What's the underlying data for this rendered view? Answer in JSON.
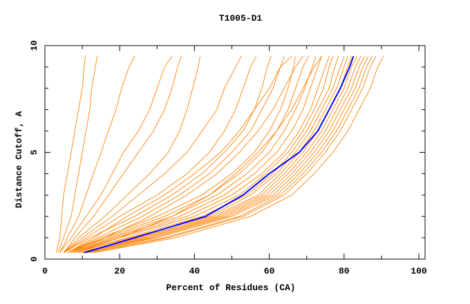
{
  "chart_data": {
    "type": "line",
    "title": "T1005-D1",
    "xlabel": "Percent of Residues (CA)",
    "ylabel": "Distance Cutoff, A",
    "xlim": [
      0,
      100
    ],
    "ylim": [
      0,
      10
    ],
    "xticks": [
      "0",
      "20",
      "40",
      "60",
      "80",
      "100"
    ],
    "yticks": [
      "0",
      "5",
      "10"
    ],
    "grid": false,
    "colors": {
      "models": "#ff8000",
      "highlight": "#0000ff"
    },
    "y_levels": [
      0.3,
      1,
      2,
      3,
      4,
      5,
      6,
      7,
      8,
      9,
      9.5
    ],
    "models_x": [
      [
        3,
        4,
        4.5,
        5,
        6,
        7,
        8,
        9,
        10,
        10.5,
        10.8
      ],
      [
        3.5,
        5,
        7,
        8,
        9,
        10,
        11,
        12,
        12.5,
        13.5,
        14
      ],
      [
        4,
        6,
        9,
        11,
        13,
        15,
        17,
        19,
        20.5,
        22.5,
        24
      ],
      [
        4,
        7,
        11,
        15,
        18,
        21,
        25,
        28,
        30,
        32,
        34
      ],
      [
        5,
        8,
        13,
        17,
        21,
        25,
        29,
        32,
        34,
        35.5,
        36.5
      ],
      [
        5,
        9,
        16,
        22,
        28,
        33,
        36,
        38,
        39.5,
        41,
        41.5
      ],
      [
        5,
        10,
        18,
        25,
        32,
        38,
        42,
        46,
        48,
        51,
        52.5
      ],
      [
        5,
        11,
        20,
        30,
        38,
        44,
        48,
        51,
        53,
        55,
        56.5
      ],
      [
        5,
        12,
        24,
        34,
        42,
        48,
        53,
        56,
        58,
        59.5,
        60.5
      ],
      [
        6,
        14,
        26,
        36,
        44,
        50,
        55,
        58,
        61,
        63,
        64
      ],
      [
        6,
        15,
        30,
        42,
        50,
        56,
        60,
        63,
        65,
        66.5,
        67
      ],
      [
        6,
        16,
        32,
        44,
        52,
        58,
        62,
        65,
        67,
        69,
        70.5
      ],
      [
        6,
        17,
        34,
        46,
        54,
        60,
        64,
        67,
        69.5,
        71.5,
        72.5
      ],
      [
        7,
        18,
        36,
        48,
        56,
        62,
        66,
        69,
        71,
        73,
        74
      ],
      [
        7,
        19,
        38,
        50,
        58,
        64,
        68,
        71,
        73,
        75,
        76
      ],
      [
        7,
        20,
        40,
        52,
        59,
        65,
        69,
        72,
        74.5,
        76,
        77
      ],
      [
        8,
        22,
        42,
        54,
        61,
        66,
        70,
        73,
        76,
        77.5,
        78.5
      ],
      [
        8,
        23,
        44,
        55,
        62,
        67,
        71,
        74,
        77,
        79,
        80
      ],
      [
        9,
        25,
        45,
        57,
        63,
        68,
        72,
        75,
        78,
        80,
        81
      ],
      [
        9,
        26,
        46,
        58,
        64,
        69,
        73,
        76,
        79,
        81,
        82
      ],
      [
        10,
        27,
        47,
        59,
        65,
        70,
        74,
        77,
        80,
        82,
        83.5
      ],
      [
        10,
        28,
        48,
        60,
        66,
        71,
        75,
        78,
        81,
        83,
        84.5
      ],
      [
        11,
        29,
        49,
        61,
        67,
        72,
        76,
        79,
        82,
        84,
        85.5
      ],
      [
        11,
        30,
        50,
        62,
        68,
        73,
        77,
        80,
        83,
        85,
        86.5
      ],
      [
        12,
        32,
        52,
        63,
        69,
        74,
        78,
        81,
        84,
        86,
        87.5
      ],
      [
        12,
        33,
        53,
        64,
        70,
        75,
        79,
        82,
        85,
        87,
        88.5
      ],
      [
        13,
        35,
        55,
        66,
        72,
        77,
        81,
        84,
        87,
        89,
        90.5
      ],
      [
        6,
        13,
        22,
        32,
        40,
        47,
        52,
        56,
        60,
        63,
        66
      ],
      [
        7,
        16,
        28,
        38,
        46,
        52,
        57,
        61,
        64,
        67,
        69
      ],
      [
        8,
        20,
        34,
        44,
        51,
        57,
        62,
        66,
        69,
        72,
        74
      ]
    ],
    "highlight_x": [
      10.5,
      24,
      43,
      53,
      60,
      68,
      73,
      76,
      79,
      81.5,
      82.5
    ]
  }
}
